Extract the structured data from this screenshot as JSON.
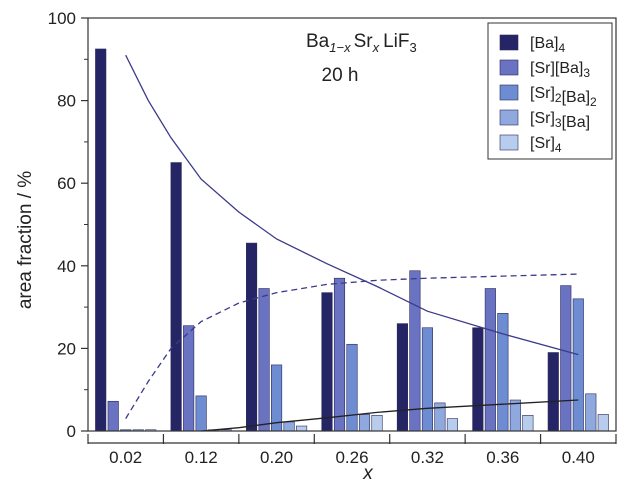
{
  "chart_data": {
    "type": "bar",
    "xlabel": "x",
    "ylabel": "area fraction / %",
    "ylim": [
      0,
      100
    ],
    "yticks": [
      0,
      20,
      40,
      60,
      80,
      100
    ],
    "categories": [
      "0.02",
      "0.12",
      "0.20",
      "0.26",
      "0.32",
      "0.36",
      "0.40"
    ],
    "annotation": {
      "formula": {
        "base1": "Ba",
        "sub1": "1−x",
        "base2": "Sr",
        "sub2": "x",
        "base3": "LiF",
        "sub3": "3"
      },
      "duration": "20 h"
    },
    "legend_position": "top-right",
    "series": [
      {
        "name": "[Ba]4",
        "name_base": "[Ba]",
        "name_sub": "4",
        "color": "#252566",
        "values": [
          92.5,
          65,
          45.5,
          33.5,
          26,
          25,
          19
        ]
      },
      {
        "name": "[Sr][Ba]3",
        "name_base": "[Sr][Ba]",
        "name_sub": "3",
        "color": "#6a72c2",
        "values": [
          7.2,
          25.5,
          34.5,
          37,
          38.8,
          34.5,
          35.2
        ]
      },
      {
        "name": "[Sr]2[Ba]2",
        "name_base": "[Sr]2[Ba]",
        "name_sub": "2",
        "color": "#6e8cd2",
        "values": [
          0.3,
          8.5,
          16,
          21,
          25,
          28.5,
          32
        ]
      },
      {
        "name": "[Sr]3[Ba]",
        "name_base": "[Sr]3[Ba]",
        "name_sub": "",
        "color": "#8fa9df",
        "values": [
          0.3,
          0.3,
          2.2,
          4,
          6.8,
          7.5,
          9
        ]
      },
      {
        "name": "[Sr]4",
        "name_base": "[Sr]",
        "name_sub": "4",
        "color": "#b8cdee",
        "values": [
          0.3,
          0.3,
          1.2,
          3.8,
          3,
          3.8,
          4
        ]
      }
    ],
    "curves": [
      {
        "style": "solid",
        "color": "#3a3a8a",
        "x": [
          0.02,
          0.05,
          0.08,
          0.12,
          0.16,
          0.2,
          0.24,
          0.28,
          0.32,
          0.36,
          0.4
        ],
        "y": [
          91,
          80,
          71,
          61,
          53,
          46.5,
          40.5,
          35,
          29,
          23.5,
          18.5
        ]
      },
      {
        "style": "dashed",
        "color": "#3a3a8a",
        "x": [
          0.02,
          0.05,
          0.08,
          0.12,
          0.16,
          0.2,
          0.24,
          0.28,
          0.32,
          0.36,
          0.4
        ],
        "y": [
          3,
          12,
          20,
          26.5,
          31,
          33.5,
          35.5,
          36.5,
          37,
          37.5,
          38
        ]
      },
      {
        "style": "solid",
        "color": "#222222",
        "x": [
          0.12,
          0.16,
          0.2,
          0.24,
          0.28,
          0.32,
          0.36,
          0.4
        ],
        "y": [
          0,
          0.8,
          2,
          3.2,
          4.5,
          5.5,
          6.5,
          7.5
        ]
      }
    ]
  }
}
